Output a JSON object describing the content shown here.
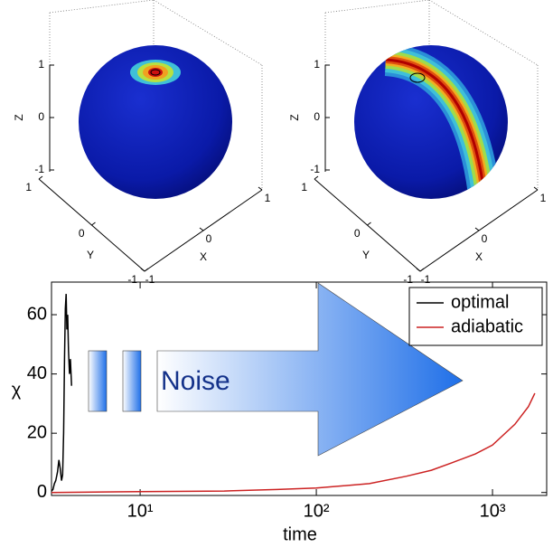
{
  "chart_data": [
    {
      "type": "sphere",
      "xlabel": "X",
      "ylabel": "Y",
      "zlabel": "Z",
      "xlim": [
        -1,
        1
      ],
      "ylim": [
        -1,
        1
      ],
      "zlim": [
        -1,
        1
      ],
      "xticks": [
        -1,
        0,
        1
      ],
      "yticks": [
        -1,
        0,
        1
      ],
      "zticks": [
        -1,
        0,
        1
      ]
    },
    {
      "type": "sphere",
      "xlabel": "X",
      "ylabel": "Y",
      "zlabel": "Z",
      "xlim": [
        -1,
        1
      ],
      "ylim": [
        -1,
        1
      ],
      "zlim": [
        -1,
        1
      ],
      "xticks": [
        -1,
        0,
        1
      ],
      "yticks": [
        -1,
        0,
        1
      ],
      "zticks": [
        -1,
        0,
        1
      ]
    },
    {
      "type": "line",
      "xlabel": "time",
      "ylabel": "χ",
      "xscale": "log",
      "xlim": [
        3.14,
        2030
      ],
      "ylim": [
        -1,
        71
      ],
      "xticks": [
        {
          "value": 10,
          "label": "10¹"
        },
        {
          "value": 100,
          "label": "10²"
        },
        {
          "value": 1000,
          "label": "10³"
        }
      ],
      "yticks": [
        0,
        20,
        40,
        60
      ],
      "legend": "upper right",
      "annotation": "Noise",
      "series": [
        {
          "name": "optimal",
          "color": "#000000",
          "x": [
            3.14,
            3.2,
            3.26,
            3.32,
            3.4,
            3.46,
            3.52,
            3.58,
            3.63,
            3.68,
            3.72,
            3.76,
            3.8,
            3.84,
            3.88,
            3.92,
            3.97,
            4.02,
            4.08
          ],
          "values": [
            0.5,
            1,
            3,
            4,
            7,
            11,
            8,
            4,
            6,
            20,
            45,
            62,
            67,
            55,
            60,
            48,
            40,
            45,
            36
          ]
        },
        {
          "name": "adiabatic",
          "color": "#cc2222",
          "x": [
            3.14,
            10,
            30,
            60,
            100,
            200,
            325,
            450,
            587,
            800,
            1000,
            1340,
            1600,
            1740
          ],
          "values": [
            0,
            0.3,
            0.5,
            1,
            1.5,
            3,
            5.5,
            7.5,
            10,
            13,
            16,
            23,
            29,
            33.5
          ]
        }
      ]
    }
  ]
}
